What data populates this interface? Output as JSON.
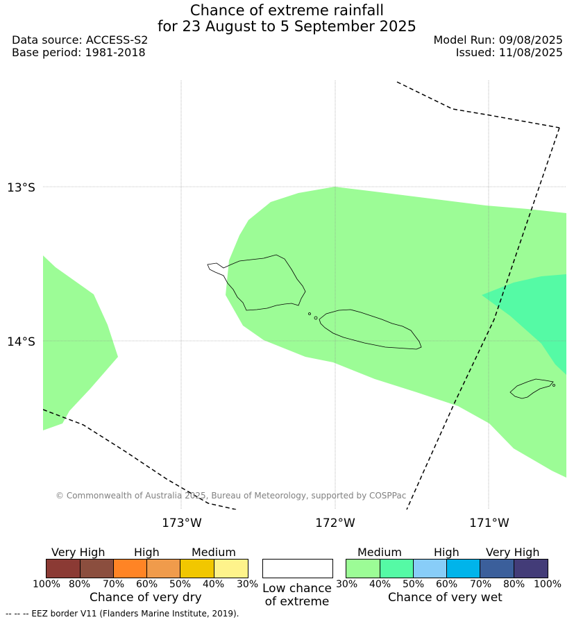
{
  "header": {
    "title_line1": "Chance of extreme rainfall",
    "title_line2": "for 23 August to 5 September 2025",
    "data_source": "Data source: ACCESS-S2",
    "base_period": "Base period: 1981-2018",
    "model_run": "Model Run: 09/08/2025",
    "issued": "Issued: 11/08/2025"
  },
  "map": {
    "lat_labels": [
      "13°S",
      "14°S"
    ],
    "lon_labels": [
      "173°W",
      "172°W",
      "171°W"
    ],
    "copyright": "© Commonwealth of Australia 2025, Bureau of Meteorology, supported by COSPPac",
    "colors": {
      "medium_wet": "#9cfc96",
      "moderate_wet": "#55faa5",
      "eez": "#000000",
      "grid": "#888888"
    }
  },
  "legend": {
    "dry": {
      "levels": [
        "Very High",
        "High",
        "Medium"
      ],
      "percents": [
        "100%",
        "80%",
        "70%",
        "60%",
        "50%",
        "40%",
        "30%"
      ],
      "colors": [
        "#8b3a34",
        "#8b4e3e",
        "#ff8425",
        "#f09b4b",
        "#f1c700",
        "#fef38b"
      ],
      "caption": "Chance of very dry"
    },
    "neutral": {
      "caption_line1": "Low chance",
      "caption_line2": "of extreme",
      "color": "#ffffff"
    },
    "wet": {
      "levels": [
        "Medium",
        "High",
        "Very High"
      ],
      "percents": [
        "30%",
        "40%",
        "50%",
        "60%",
        "70%",
        "80%",
        "100%"
      ],
      "colors": [
        "#9cfc96",
        "#55faa5",
        "#88cdf8",
        "#00b4ea",
        "#3b5f9b",
        "#433c78"
      ],
      "caption": "Chance of very wet"
    }
  },
  "footnote": "--  --  -- EEZ border V11 (Flanders Marine Institute, 2019)."
}
